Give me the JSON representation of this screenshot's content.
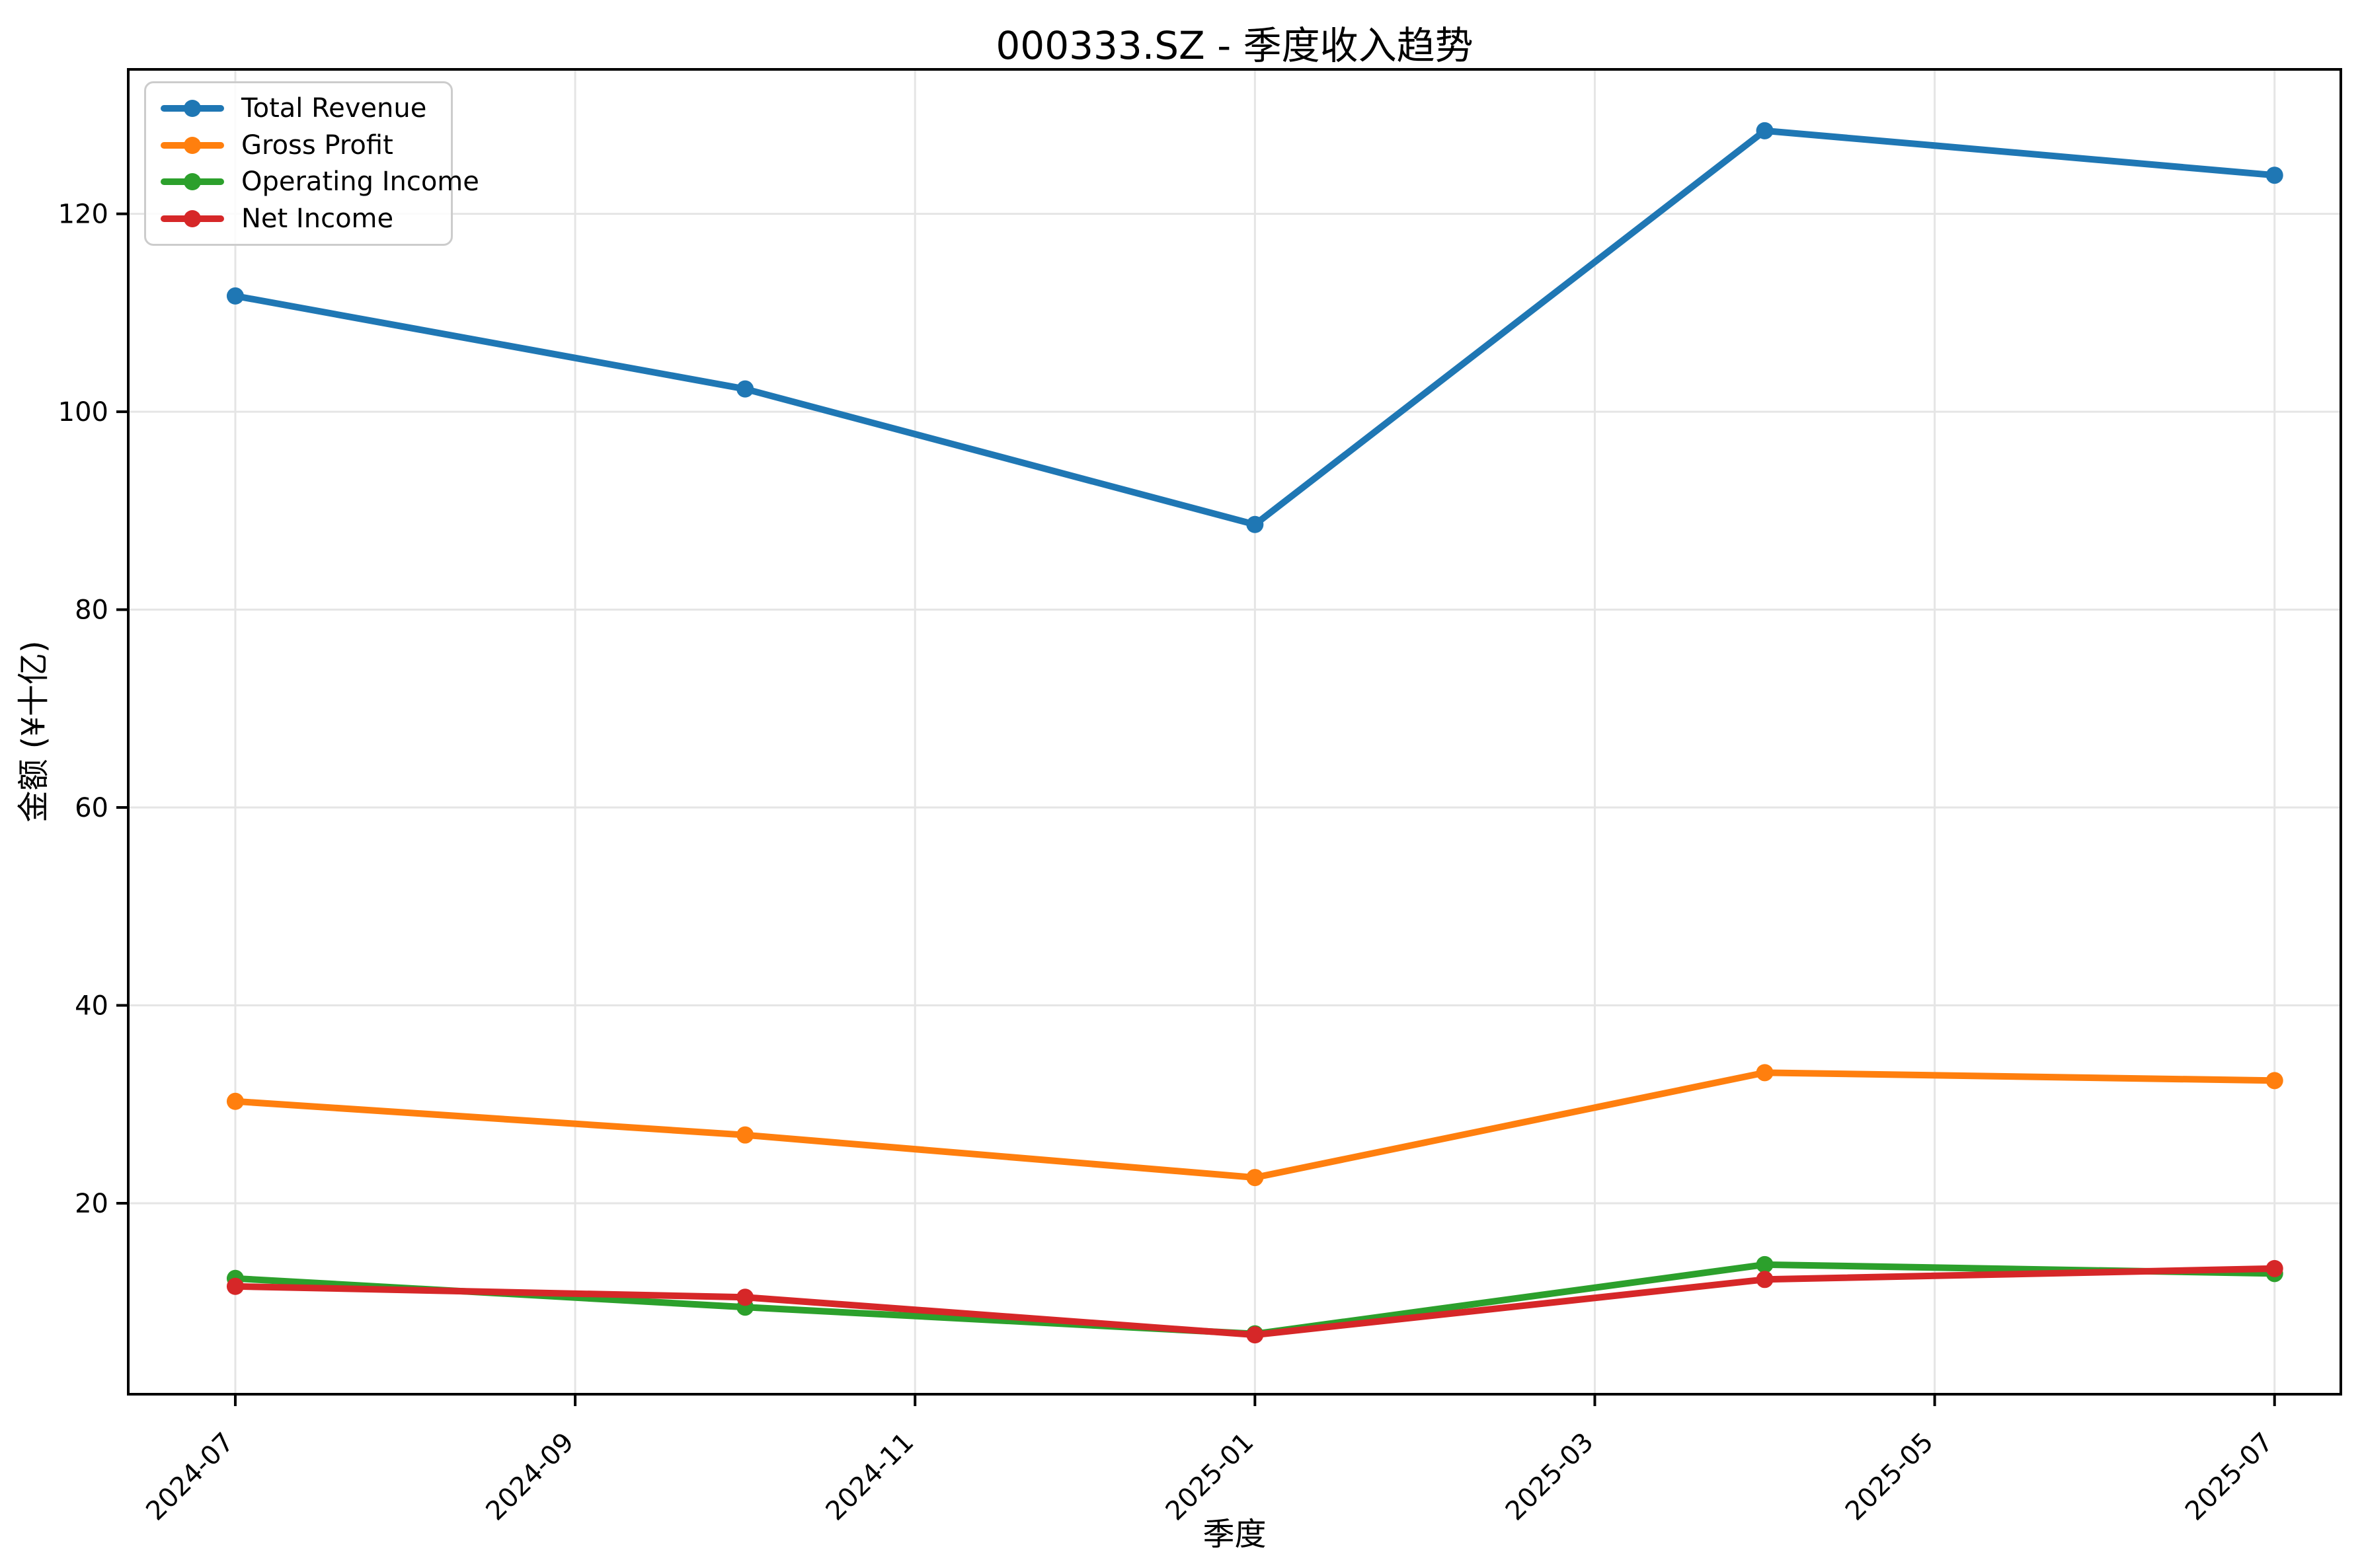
{
  "chart_data": {
    "type": "line",
    "title": "000333.SZ - 季度收入趋势",
    "xlabel": "季度",
    "ylabel": "金额 (¥十亿)",
    "x_tick_labels": [
      "2024-07",
      "2024-09",
      "2024-11",
      "2025-01",
      "2025-03",
      "2025-05",
      "2025-07"
    ],
    "x_tick_months": [
      0,
      2,
      4,
      6,
      8,
      10,
      12
    ],
    "y_ticks": [
      20,
      40,
      60,
      80,
      100,
      120
    ],
    "xlim_months": [
      -0.63,
      12.39
    ],
    "ylim": [
      0.7,
      134.6
    ],
    "grid": true,
    "grid_color": "#e5e5e5",
    "spine_color": "#000000",
    "legend_position": "upper-left",
    "x_tick_rotation_deg": 45,
    "series": [
      {
        "name": "Total Revenue",
        "color": "#1f77b4",
        "x_months": [
          0,
          3,
          6,
          9,
          12
        ],
        "values": [
          111.7,
          102.3,
          88.6,
          128.4,
          123.9
        ]
      },
      {
        "name": "Gross Profit",
        "color": "#ff7f0e",
        "x_months": [
          0,
          3,
          6,
          9,
          12
        ],
        "values": [
          30.3,
          26.9,
          22.6,
          33.2,
          32.4
        ]
      },
      {
        "name": "Operating Income",
        "color": "#2ca02c",
        "x_months": [
          0,
          3,
          6,
          9,
          12
        ],
        "values": [
          12.4,
          9.5,
          6.8,
          13.8,
          12.9
        ]
      },
      {
        "name": "Net Income",
        "color": "#d62728",
        "x_months": [
          0,
          3,
          6,
          9,
          12
        ],
        "values": [
          11.6,
          10.5,
          6.7,
          12.3,
          13.4
        ]
      }
    ]
  }
}
